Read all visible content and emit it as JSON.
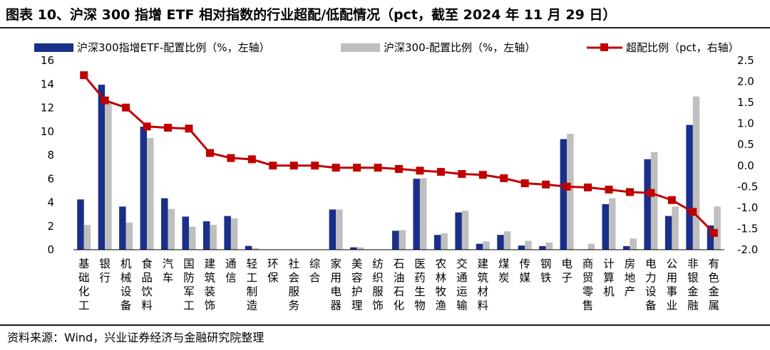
{
  "header": {
    "title": "图表 10、沪深 300 指增 ETF 相对指数的行业超配/低配情况（pct，截至 2024 年 11 月 29 日）"
  },
  "footer": {
    "source": "资料来源：Wind，兴业证券经济与金融研究院整理"
  },
  "colors": {
    "etf": "#1a2f8a",
    "index": "#bfbfbf",
    "overweight": "#c00000"
  },
  "chart_data": {
    "type": "bar",
    "categories": [
      "基础化工",
      "银行",
      "机械设备",
      "食品饮料",
      "汽车",
      "国防军工",
      "建筑装饰",
      "通信",
      "轻工制造",
      "环保",
      "社会服务",
      "综合",
      "家用电器",
      "美容护理",
      "纺织服饰",
      "石油石化",
      "医药生物",
      "农林牧渔",
      "交通运输",
      "建筑材料",
      "煤炭",
      "传媒",
      "钢铁",
      "电子",
      "商贸零售",
      "计算机",
      "房地产",
      "电力设备",
      "公用事业",
      "非银金融",
      "有色金属"
    ],
    "series": [
      {
        "name": "沪深300指增ETF-配置比例（%，左轴）",
        "type": "bar",
        "axis": "left",
        "values": [
          4.25,
          13.95,
          3.65,
          10.4,
          4.35,
          2.8,
          2.4,
          2.85,
          0.32,
          0.0,
          0.0,
          0.0,
          3.4,
          0.2,
          0.0,
          1.6,
          6.0,
          1.25,
          3.15,
          0.5,
          1.25,
          0.35,
          0.3,
          9.35,
          0.0,
          3.85,
          0.3,
          7.65,
          2.85,
          10.55,
          2.05
        ]
      },
      {
        "name": "沪深300-配置比例（%，左轴）",
        "type": "bar",
        "axis": "left",
        "values": [
          2.1,
          12.35,
          2.3,
          9.45,
          3.45,
          1.95,
          2.1,
          2.65,
          0.12,
          0.0,
          0.0,
          0.0,
          3.4,
          0.2,
          0.0,
          1.65,
          6.05,
          1.4,
          3.3,
          0.7,
          1.55,
          0.75,
          0.6,
          9.8,
          0.5,
          4.35,
          0.95,
          8.25,
          3.65,
          12.95,
          3.65
        ]
      },
      {
        "name": "超配比例（pct，右轴）",
        "type": "line",
        "axis": "right",
        "values": [
          2.15,
          1.55,
          1.38,
          0.93,
          0.9,
          0.88,
          0.3,
          0.18,
          0.15,
          0.0,
          0.0,
          0.0,
          -0.05,
          -0.05,
          -0.05,
          -0.08,
          -0.12,
          -0.15,
          -0.2,
          -0.22,
          -0.3,
          -0.42,
          -0.45,
          -0.5,
          -0.52,
          -0.57,
          -0.63,
          -0.65,
          -0.82,
          -1.1,
          -1.6
        ]
      }
    ],
    "left_axis": {
      "range": [
        0,
        16
      ],
      "ticks": [
        "0",
        "2",
        "4",
        "6",
        "8",
        "10",
        "12",
        "14",
        "16"
      ]
    },
    "right_axis": {
      "range": [
        -2.0,
        2.5
      ],
      "ticks": [
        "-2.0",
        "-1.5",
        "-1.0",
        "-0.5",
        "0.0",
        "0.5",
        "1.0",
        "1.5",
        "2.0",
        "2.5"
      ]
    },
    "legend_position": "top",
    "grid": false
  }
}
